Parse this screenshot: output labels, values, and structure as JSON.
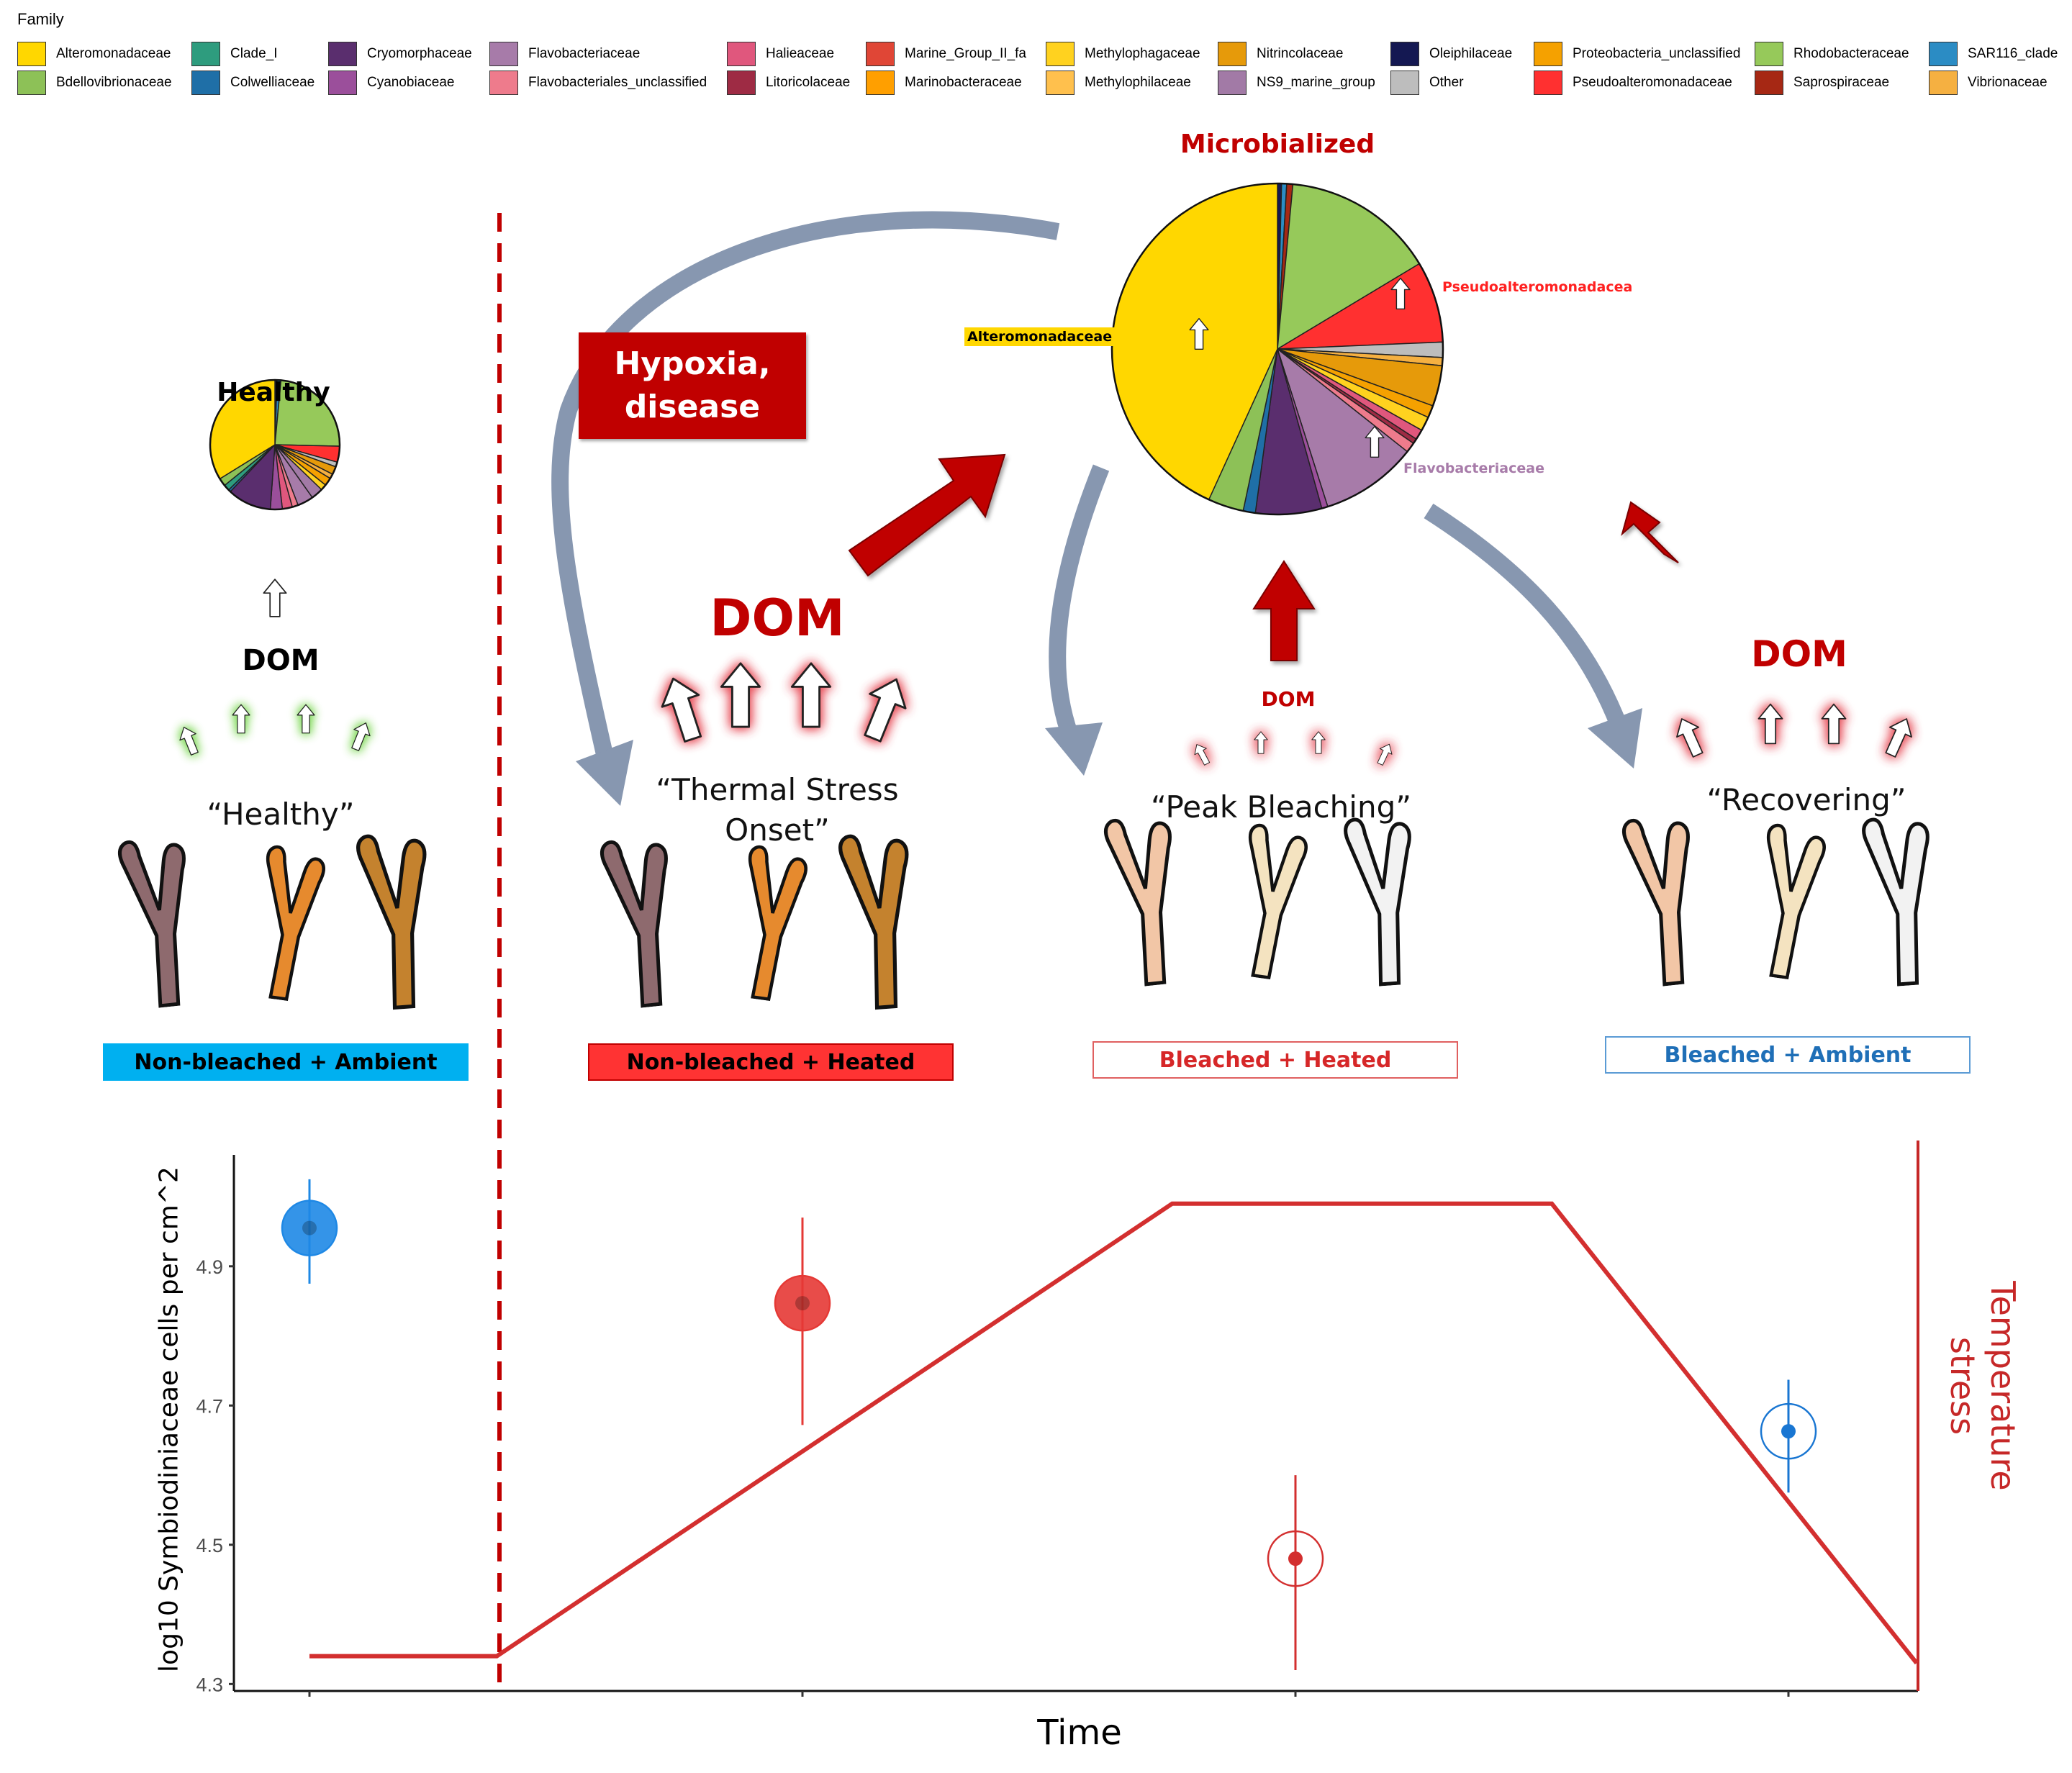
{
  "legend": {
    "title": "Family",
    "items": [
      {
        "name": "Alteromonadaceae",
        "color": "#FFD700"
      },
      {
        "name": "Bdellovibrionaceae",
        "color": "#8DC157"
      },
      {
        "name": "Clade_I",
        "color": "#2E9C7E"
      },
      {
        "name": "Colwelliaceae",
        "color": "#1F6FA7"
      },
      {
        "name": "Cryomorphaceae",
        "color": "#5A2E6E"
      },
      {
        "name": "Cyanobiaceae",
        "color": "#9B4F9B"
      },
      {
        "name": "Flavobacteriaceae",
        "color": "#A77BA9"
      },
      {
        "name": "Flavobacteriales_unclassified",
        "color": "#EE7B8C"
      },
      {
        "name": "Halieaceae",
        "color": "#E0577D"
      },
      {
        "name": "Litoricolaceae",
        "color": "#9E2B44"
      },
      {
        "name": "Marine_Group_II_fa",
        "color": "#E04636"
      },
      {
        "name": "Marinobacteraceae",
        "color": "#FF9F00"
      },
      {
        "name": "Methylophagaceae",
        "color": "#FFD21F"
      },
      {
        "name": "Methylophilaceae",
        "color": "#FFC04D"
      },
      {
        "name": "Nitrincolaceae",
        "color": "#E69A0A"
      },
      {
        "name": "NS9_marine_group",
        "color": "#A27AA6"
      },
      {
        "name": "Oleiphilaceae",
        "color": "#141852"
      },
      {
        "name": "Other",
        "color": "#BDBDBD"
      },
      {
        "name": "Proteobacteria_unclassified",
        "color": "#F5A100"
      },
      {
        "name": "Pseudoalteromonadaceae",
        "color": "#FF3030"
      },
      {
        "name": "Rhodobacteraceae",
        "color": "#96C95A"
      },
      {
        "name": "Saprospiraceae",
        "color": "#A62814"
      },
      {
        "name": "SAR116_clade",
        "color": "#2B8CC4"
      },
      {
        "name": "Vibrionaceae",
        "color": "#F5B041"
      }
    ]
  },
  "diagram": {
    "healthy_pie_title": "Healthy",
    "microbialized_title": "Microbialized",
    "hypoxia_label": "Hypoxia,\ndisease",
    "pie_labels": {
      "alteromonadaceae": "Alteromonadaceae",
      "pseudoalteromonadacea": "Pseudoalteromonadacea",
      "flavobacteriaceae": "Flavobacteriaceae"
    },
    "dom_labels": [
      "DOM",
      "DOM",
      "DOM",
      "DOM"
    ],
    "stages": [
      "“Healthy”",
      "“Thermal Stress\nOnset”",
      "“Peak Bleaching”",
      "“Recovering”"
    ],
    "conditions": [
      {
        "label": "Non-bleached + Ambient",
        "fill": "#00B0F0",
        "text_color": "#000000",
        "border": "#00B0F0"
      },
      {
        "label": "Non-bleached + Heated",
        "fill": "#FF3333",
        "text_color": "#000000",
        "border": "#C00000"
      },
      {
        "label": "Bleached + Heated",
        "fill": "#FFFFFF",
        "text_color": "#D62728",
        "border": "#E06060"
      },
      {
        "label": "Bleached + Ambient",
        "fill": "#FFFFFF",
        "text_color": "#1F6FB7",
        "border": "#5B9BD5"
      }
    ],
    "colors": {
      "dark_red": "#C00000",
      "gray_blue_arrow": "#8797B0"
    }
  },
  "chart_data": {
    "type": "scatter",
    "xlabel": "Time",
    "ylabel": "log10 Symbiodiniaceae cells per cm^2",
    "secondary_label": "Temperature\nstress",
    "y_ticks": [
      "4.3",
      "4.5",
      "4.7",
      "4.9"
    ],
    "ylim": [
      4.29,
      5.06
    ],
    "points": [
      {
        "condition": "Non-bleached + Ambient",
        "x": 1,
        "y": 4.955,
        "ymin": 4.875,
        "ymax": 5.025,
        "color": "#1E88E5",
        "filled": true
      },
      {
        "condition": "Non-bleached + Heated",
        "x": 2,
        "y": 4.847,
        "ymin": 4.672,
        "ymax": 4.97,
        "color": "#E53935",
        "filled": true
      },
      {
        "condition": "Bleached + Heated",
        "x": 3,
        "y": 4.48,
        "ymin": 4.32,
        "ymax": 4.6,
        "color": "#D32F2F",
        "filled": false
      },
      {
        "condition": "Bleached + Ambient",
        "x": 4,
        "y": 4.663,
        "ymin": 4.575,
        "ymax": 4.737,
        "color": "#1976D2",
        "filled": false
      }
    ],
    "temperature_line": {
      "color": "#D32F2F",
      "x": [
        1.0,
        1.38,
        2.75,
        3.52,
        4.26
      ],
      "y": [
        4.34,
        4.34,
        4.99,
        4.99,
        4.33
      ]
    },
    "divider_x": 1.38,
    "grid": false
  }
}
